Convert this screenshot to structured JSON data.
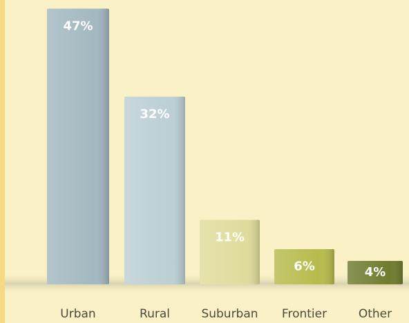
{
  "chart_data": {
    "type": "bar",
    "categories": [
      "Urban",
      "Rural",
      "Suburban",
      "Frontier",
      "Other"
    ],
    "values": [
      47,
      32,
      11,
      6,
      4
    ],
    "value_labels": [
      "47%",
      "32%",
      "11%",
      "6%",
      "4%"
    ],
    "colors": [
      "#a3b8c0",
      "#bccfd3",
      "#e0dc9c",
      "#b7bb4c",
      "#707c2f"
    ]
  }
}
